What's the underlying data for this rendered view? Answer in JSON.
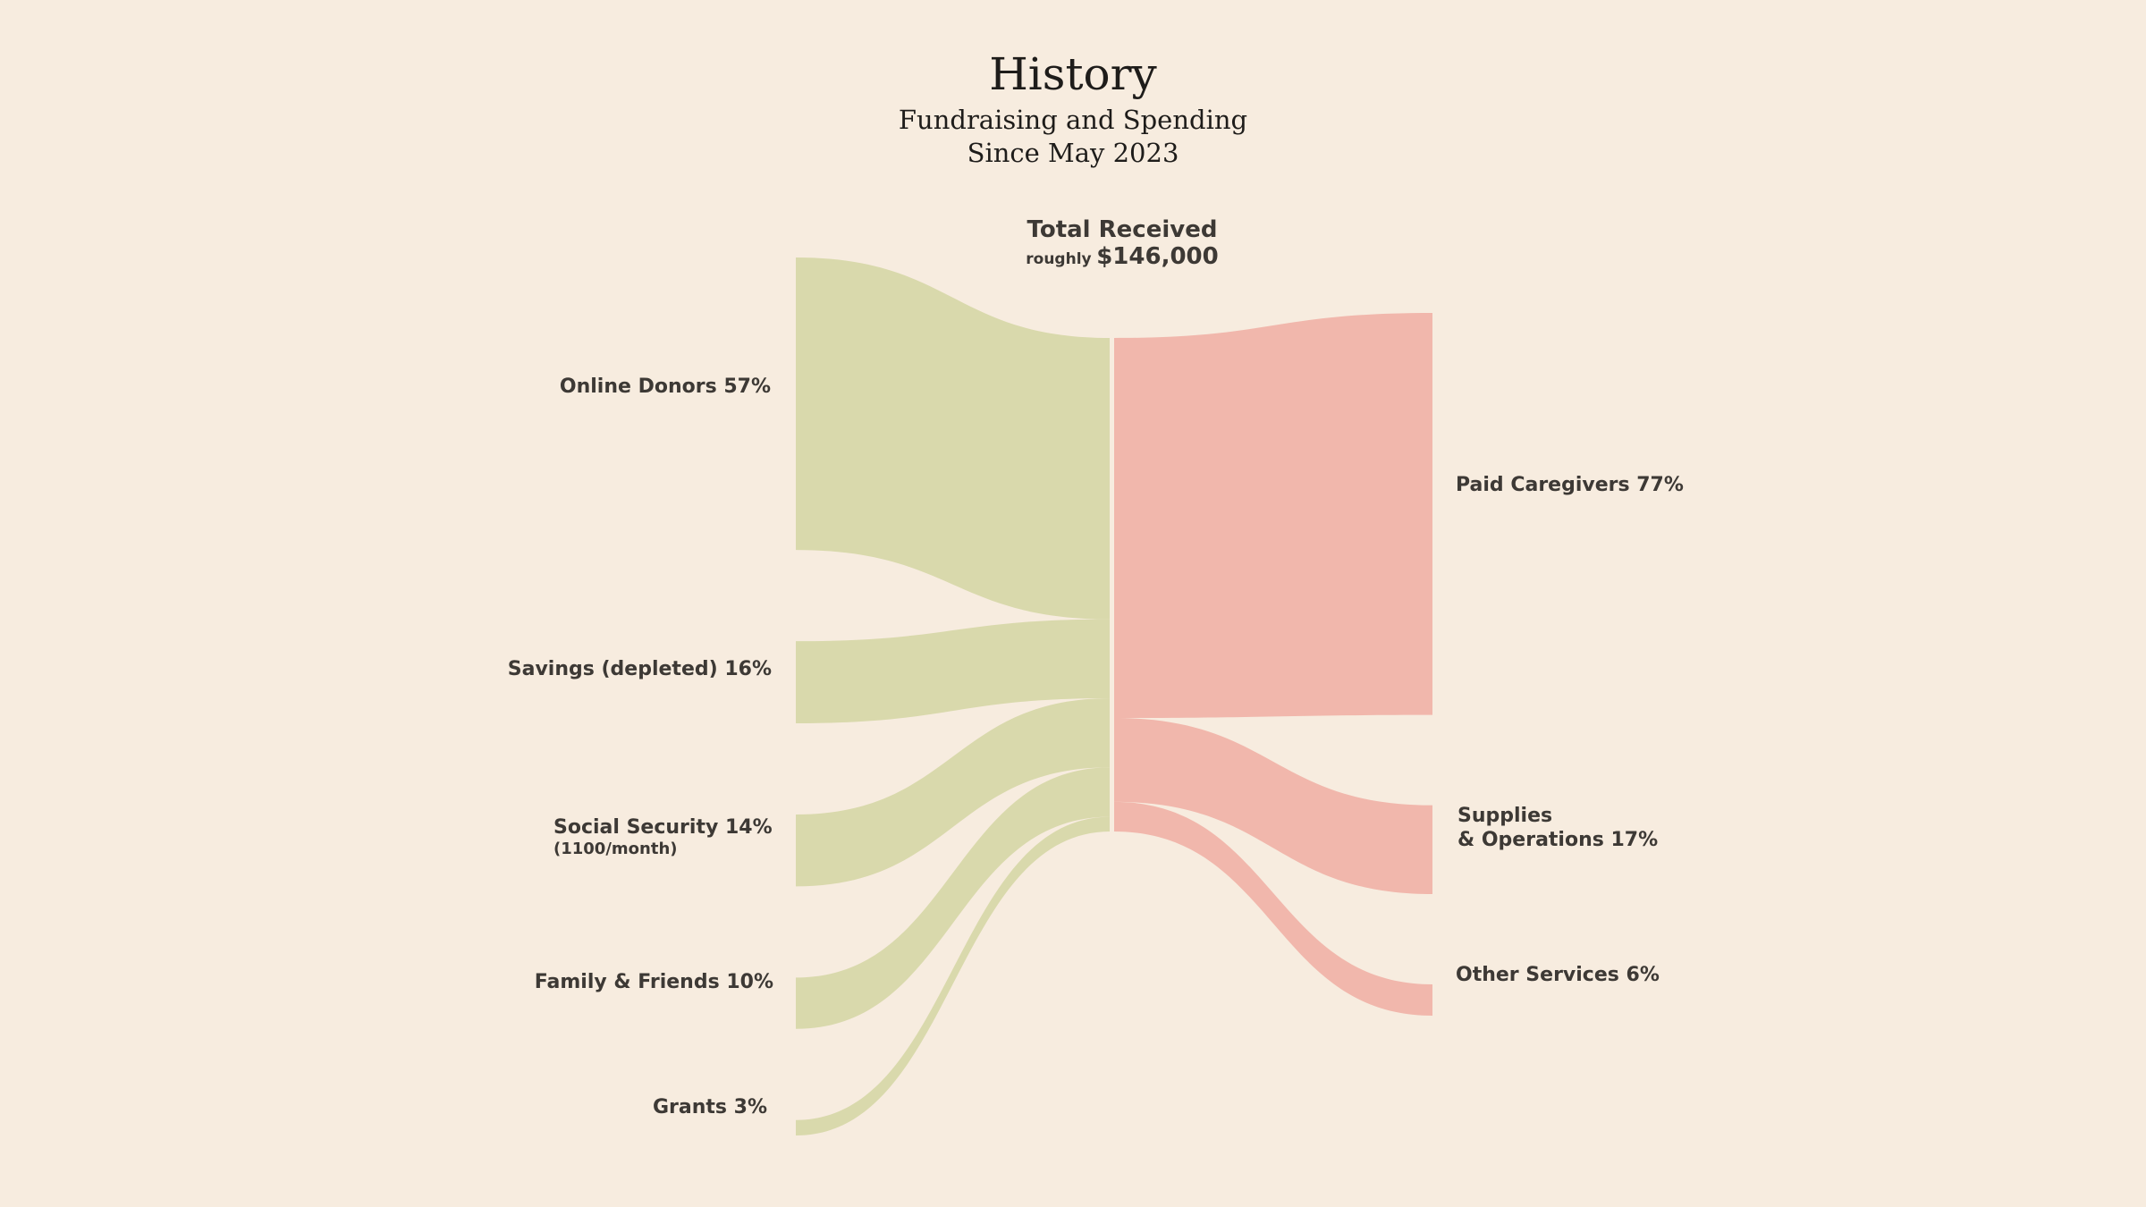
{
  "header": {
    "title": "History",
    "subtitle_line1": "Fundraising and Spending",
    "subtitle_line2": "Since May 2023"
  },
  "center": {
    "title": "Total Received",
    "amount_prefix": "roughly",
    "amount": "$146,000"
  },
  "colors": {
    "background": "#f7ecdf",
    "income": "#d9d9ac",
    "spending": "#f1b7ac",
    "text": "#3d3935"
  },
  "chart_data": {
    "type": "sankey",
    "title": "History",
    "subtitle": "Fundraising and Spending Since May 2023",
    "total": {
      "label": "Total Received",
      "amount": "$146,000",
      "qualifier": "roughly"
    },
    "sources": [
      {
        "id": "online-donors",
        "name": "Online Donors",
        "percent": 57,
        "label": "Online Donors 57%"
      },
      {
        "id": "savings",
        "name": "Savings (depleted)",
        "percent": 16,
        "label": "Savings (depleted) 16%"
      },
      {
        "id": "social-security",
        "name": "Social Security",
        "percent": 14,
        "label": "Social Security 14%",
        "sublabel": "(1100/month)"
      },
      {
        "id": "family-friends",
        "name": "Family & Friends",
        "percent": 10,
        "label": "Family & Friends 10%"
      },
      {
        "id": "grants",
        "name": "Grants",
        "percent": 3,
        "label": "Grants 3%"
      }
    ],
    "targets": [
      {
        "id": "paid-caregivers",
        "name": "Paid Caregivers",
        "percent": 77,
        "label": "Paid Caregivers 77%"
      },
      {
        "id": "supplies-operations",
        "name": "Supplies & Operations",
        "percent": 17,
        "label_line1": "Supplies",
        "label_line2": "& Operations 17%"
      },
      {
        "id": "other-services",
        "name": "Other Services",
        "percent": 6,
        "label": "Other Services 6%"
      }
    ]
  }
}
